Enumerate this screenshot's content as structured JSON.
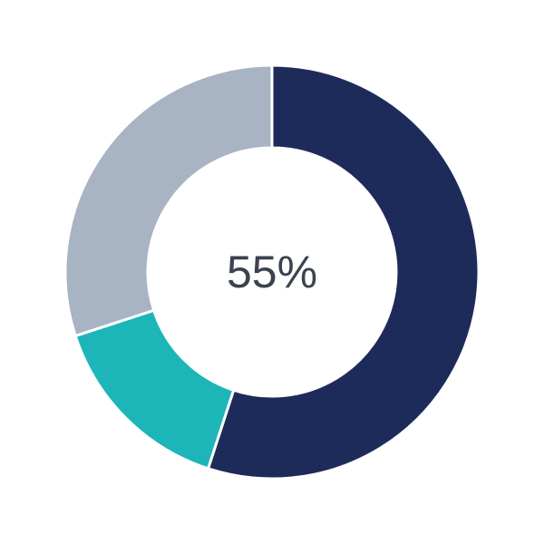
{
  "chart_data": {
    "type": "pie",
    "variant": "donut",
    "center_label": "55%",
    "slices": [
      {
        "value": 55,
        "color": "#1c2b5a"
      },
      {
        "value": 15,
        "color": "#1cb6b8"
      },
      {
        "value": 30,
        "color": "#a8b3c4"
      }
    ],
    "start_angle": "top",
    "direction": "clockwise"
  }
}
